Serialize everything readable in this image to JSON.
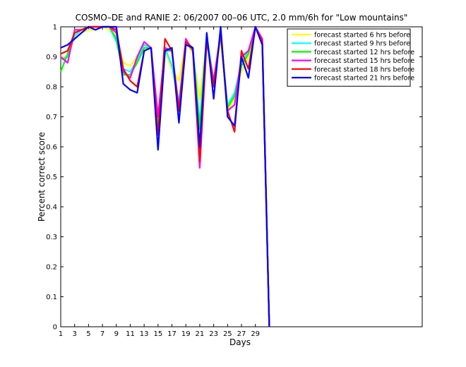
{
  "chart_data": {
    "type": "line",
    "title": "COSMO–DE and RANIE 2: 06/2007 00–06 UTC, 2.0 mm/6h for \"Low mountains\"",
    "xlabel": "Days",
    "ylabel": "Percent correct score",
    "xlim": [
      1,
      53
    ],
    "ylim": [
      0,
      1
    ],
    "xticks": [
      1,
      3,
      5,
      7,
      9,
      11,
      13,
      15,
      17,
      19,
      21,
      23,
      25,
      27,
      29
    ],
    "yticks": [
      0,
      0.1,
      0.2,
      0.3,
      0.4,
      0.5,
      0.6,
      0.7,
      0.8,
      0.9,
      1
    ],
    "ytick_labels": [
      "0",
      "0.1",
      "0.2",
      "0.3",
      "0.4",
      "0.5",
      "0.6",
      "0.7",
      "0.8",
      "0.9",
      "1"
    ],
    "legend_position": "top-right",
    "grid": false,
    "x": [
      1,
      2,
      3,
      4,
      5,
      6,
      7,
      8,
      9,
      10,
      11,
      12,
      13,
      14,
      15,
      16,
      17,
      18,
      19,
      20,
      21,
      22,
      23,
      24,
      25,
      26,
      27,
      28,
      29,
      30,
      31
    ],
    "series": [
      {
        "name": "forecast started 6 hrs before",
        "color": "#ffff00",
        "values": [
          0.9,
          0.9,
          0.96,
          0.98,
          0.99,
          0.99,
          1.0,
          0.99,
          0.97,
          0.88,
          0.87,
          0.9,
          0.93,
          0.93,
          0.71,
          0.92,
          0.86,
          0.82,
          0.95,
          0.91,
          0.76,
          0.96,
          0.83,
          0.95,
          0.72,
          0.76,
          0.85,
          0.9,
          1.0,
          0.95,
          0.0
        ]
      },
      {
        "name": "forecast started 9 hrs before",
        "color": "#00ffff",
        "values": [
          0.89,
          0.9,
          0.97,
          0.99,
          1.0,
          0.99,
          1.0,
          1.0,
          0.95,
          0.86,
          0.85,
          0.89,
          0.94,
          0.93,
          0.7,
          0.93,
          0.87,
          0.75,
          0.95,
          0.93,
          0.68,
          0.97,
          0.82,
          0.97,
          0.74,
          0.78,
          0.88,
          0.92,
          1.0,
          0.95,
          0.0
        ]
      },
      {
        "name": "forecast started 12 hrs before",
        "color": "#00ff00",
        "values": [
          0.85,
          0.91,
          0.98,
          0.99,
          1.0,
          1.0,
          1.0,
          1.0,
          0.96,
          0.84,
          0.84,
          0.88,
          0.93,
          0.93,
          0.68,
          0.92,
          0.92,
          0.73,
          0.95,
          0.92,
          0.66,
          0.97,
          0.8,
          0.98,
          0.73,
          0.77,
          0.87,
          0.91,
          1.0,
          0.95,
          0.0
        ]
      },
      {
        "name": "forecast started 15 hrs before",
        "color": "#ff00ff",
        "values": [
          0.9,
          0.88,
          0.99,
          0.99,
          1.0,
          1.0,
          1.0,
          1.0,
          0.98,
          0.85,
          0.83,
          0.9,
          0.95,
          0.93,
          0.7,
          0.93,
          0.92,
          0.73,
          0.96,
          0.92,
          0.53,
          0.95,
          0.82,
          0.98,
          0.72,
          0.74,
          0.9,
          0.92,
          1.0,
          0.96,
          0.0
        ]
      },
      {
        "name": "forecast started 18 hrs before",
        "color": "#ff0000",
        "values": [
          0.91,
          0.92,
          0.98,
          0.99,
          1.0,
          1.0,
          1.0,
          1.0,
          0.99,
          0.86,
          0.82,
          0.8,
          0.92,
          0.93,
          0.64,
          0.96,
          0.92,
          0.72,
          0.95,
          0.93,
          0.55,
          0.96,
          0.8,
          0.98,
          0.72,
          0.65,
          0.92,
          0.86,
          1.0,
          0.95,
          0.0
        ]
      },
      {
        "name": "forecast started 21 hrs before",
        "color": "#0000ff",
        "values": [
          0.93,
          0.94,
          0.96,
          0.98,
          1.0,
          0.99,
          1.0,
          1.0,
          1.0,
          0.81,
          0.79,
          0.78,
          0.92,
          0.93,
          0.59,
          0.92,
          0.93,
          0.68,
          0.94,
          0.93,
          0.6,
          0.98,
          0.76,
          1.0,
          0.7,
          0.67,
          0.9,
          0.83,
          1.0,
          0.94,
          0.0
        ]
      }
    ]
  }
}
